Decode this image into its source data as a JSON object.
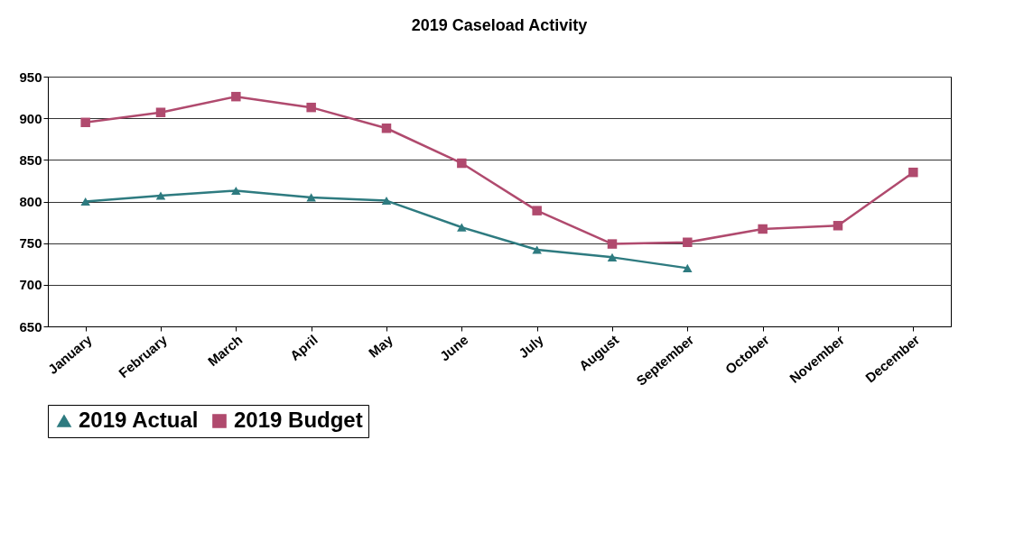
{
  "chart_data": {
    "type": "line",
    "title": "2019 Caseload Activity",
    "categories": [
      "January",
      "February",
      "March",
      "April",
      "May",
      "June",
      "July",
      "August",
      "September",
      "October",
      "November",
      "December"
    ],
    "series": [
      {
        "name": "2019 Actual",
        "color": "#2e7b80",
        "marker": "triangle",
        "values": [
          800,
          807,
          813,
          805,
          801,
          769,
          742,
          733,
          720,
          null,
          null,
          null
        ]
      },
      {
        "name": "2019 Budget",
        "color": "#b04a6e",
        "marker": "square",
        "values": [
          895,
          907,
          926,
          913,
          888,
          846,
          789,
          749,
          751,
          767,
          771,
          835
        ]
      }
    ],
    "ylim": [
      650,
      950
    ],
    "yticks": [
      650,
      700,
      750,
      800,
      850,
      900,
      950
    ],
    "grid": "y",
    "legend": "bottom",
    "line_style": "solid"
  }
}
